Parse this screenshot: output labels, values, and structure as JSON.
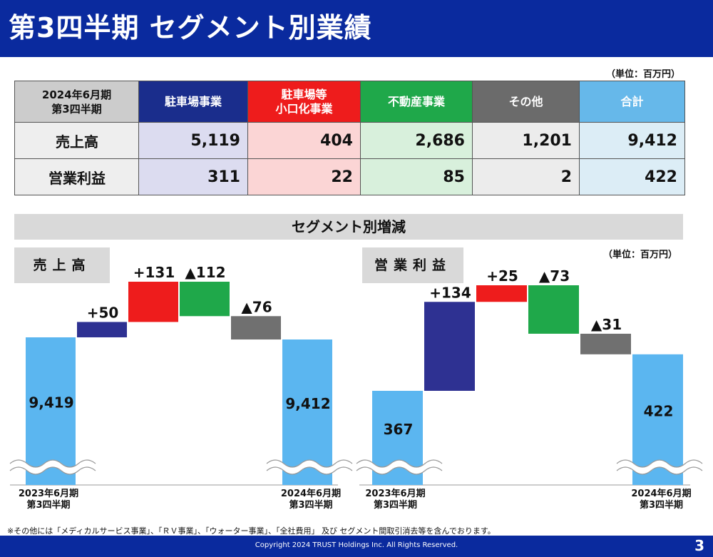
{
  "header": {
    "title": "第3四半期 セグメント別業績"
  },
  "unit_top": "（単位：百万円）",
  "unit_chart": "（単位：百万円）",
  "table": {
    "corner_line1": "2024年6月期",
    "corner_line2": "第3四半期",
    "columns": [
      {
        "line1": "駐車場事業",
        "line2": "",
        "head_color": "#1a2d8c",
        "cell_color": "#dcdcf0"
      },
      {
        "line1": "駐車場等",
        "line2": "小口化事業",
        "head_color": "#ee1c1c",
        "cell_color": "#fbd5d5"
      },
      {
        "line1": "不動産事業",
        "line2": "",
        "head_color": "#1fa84a",
        "cell_color": "#d8f0dc"
      },
      {
        "line1": "その他",
        "line2": "",
        "head_color": "#6b6b6b",
        "cell_color": "#ececec"
      },
      {
        "line1": "合計",
        "line2": "",
        "head_color": "#66b8ea",
        "cell_color": "#dcedf6"
      }
    ],
    "rows": [
      {
        "label": "売上高",
        "values": [
          "5,119",
          "404",
          "2,686",
          "1,201",
          "9,412"
        ]
      },
      {
        "label": "営業利益",
        "values": [
          "311",
          "22",
          "85",
          "2",
          "422"
        ]
      }
    ]
  },
  "band_title": "セグメント別増減",
  "sales_label": "売上高",
  "op_label": "営業利益",
  "chart_data": [
    {
      "type": "bar",
      "subtype": "waterfall",
      "title": "売上高",
      "start": {
        "value": 9419,
        "label": "9,419",
        "axis_line1": "2023年6月期",
        "axis_line2": "第3四半期"
      },
      "steps": [
        {
          "delta": 50,
          "label": "+50",
          "color": "#2e3192"
        },
        {
          "delta": 131,
          "label": "+131",
          "color": "#ee1c1c"
        },
        {
          "delta": -112,
          "label": "▲112",
          "color": "#1fa84a"
        },
        {
          "delta": -76,
          "label": "▲76",
          "color": "#707070"
        }
      ],
      "end": {
        "value": 9412,
        "label": "9,412",
        "axis_line1": "2024年6月期",
        "axis_line2": "第3四半期"
      }
    },
    {
      "type": "bar",
      "subtype": "waterfall",
      "title": "営業利益",
      "start": {
        "value": 367,
        "label": "367",
        "axis_line1": "2023年6月期",
        "axis_line2": "第3四半期"
      },
      "steps": [
        {
          "delta": 134,
          "label": "+134",
          "color": "#2e3192"
        },
        {
          "delta": 25,
          "label": "+25",
          "color": "#ee1c1c"
        },
        {
          "delta": -73,
          "label": "▲73",
          "color": "#1fa84a"
        },
        {
          "delta": -31,
          "label": "▲31",
          "color": "#707070"
        }
      ],
      "end": {
        "value": 422,
        "label": "422",
        "axis_line1": "2024年6月期",
        "axis_line2": "第3四半期"
      }
    }
  ],
  "footnote": "※その他には「メディカルサービス事業」、「ＲＶ事業」、「ウォーター事業」、「全社費用」 及び セグメント間取引消去等を含んでおります。",
  "footer": {
    "copyright": "Copyright 2024 TRUST Holdings Inc. All Rights Reserved.",
    "page": "3"
  },
  "colors": {
    "brand": "#0a2a9e",
    "endpoint_bar": "#5bb6f0"
  }
}
